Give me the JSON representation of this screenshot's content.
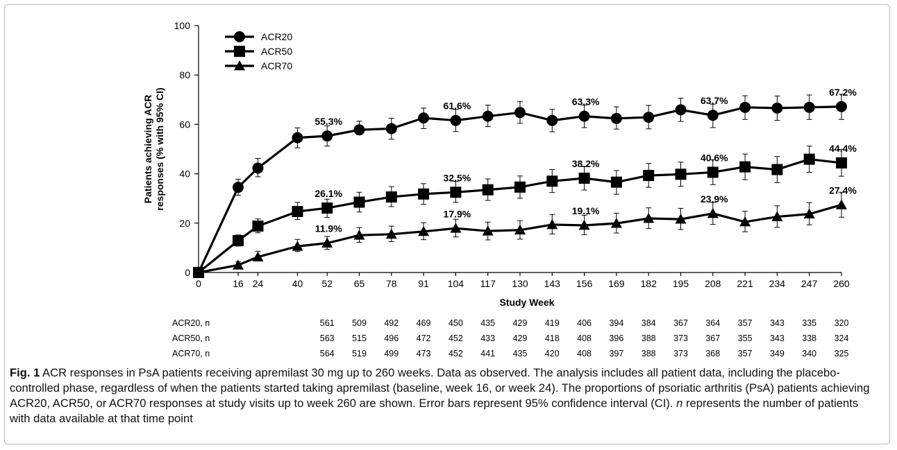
{
  "figure": {
    "fig_label": "Fig. 1",
    "caption_part1": " ACR responses in PsA patients receiving apremilast 30 mg up to 260 weeks. Data as observed. The analysis includes all patient data, including the placebo-controlled phase, regardless of when the patients started taking apremilast (baseline, week 16, or week 24). The proportions of psoriatic arthritis (PsA) patients achieving ACR20, ACR50, or ACR70 responses at study visits up to week 260 are shown. Error bars represent 95% confidence interval (CI). ",
    "caption_n": "n",
    "caption_part2": " represents the number of patients with data available at that time point"
  },
  "chart_data": {
    "type": "line",
    "title": "",
    "xlabel": "Study Week",
    "ylabel_line1": "Patients achieving ACR",
    "ylabel_line2": "responses (% with 95% CI)",
    "ylim": [
      0,
      100
    ],
    "yticks": [
      0,
      20,
      40,
      60,
      80,
      100
    ],
    "x": [
      0,
      16,
      24,
      40,
      52,
      65,
      78,
      91,
      104,
      117,
      130,
      143,
      156,
      169,
      182,
      195,
      208,
      221,
      234,
      247,
      260
    ],
    "grid": false,
    "legend_position": "top-left",
    "series": [
      {
        "name": "ACR20",
        "marker": "circle",
        "values": [
          0,
          34.5,
          42.3,
          54.6,
          55.3,
          57.8,
          58.3,
          62.6,
          61.6,
          63.3,
          64.8,
          61.6,
          63.3,
          62.4,
          62.9,
          65.9,
          63.7,
          66.9,
          66.6,
          66.9,
          67.2
        ],
        "lower": [
          0,
          31.3,
          38.8,
          50.5,
          51.2,
          55.8,
          54.0,
          58.3,
          57.1,
          59.1,
          60.5,
          57.0,
          58.7,
          58.1,
          58.2,
          61.2,
          58.7,
          62.0,
          61.6,
          62.0,
          62.0
        ],
        "upper": [
          0,
          37.8,
          46.2,
          58.6,
          59.4,
          61.3,
          62.5,
          66.6,
          66.1,
          67.8,
          69.2,
          66.1,
          67.8,
          67.1,
          67.7,
          70.6,
          68.2,
          71.6,
          71.5,
          71.9,
          72.2
        ]
      },
      {
        "name": "ACR50",
        "marker": "square",
        "values": [
          0,
          12.9,
          18.8,
          24.7,
          26.1,
          28.5,
          30.6,
          31.8,
          32.5,
          33.5,
          34.6,
          37.0,
          38.2,
          36.6,
          39.3,
          39.8,
          40.6,
          42.8,
          41.7,
          45.9,
          44.4
        ],
        "lower": [
          0,
          10.7,
          16.1,
          21.5,
          22.3,
          24.5,
          26.7,
          27.6,
          28.4,
          29.2,
          30.1,
          32.4,
          33.4,
          31.7,
          34.5,
          34.9,
          35.6,
          37.6,
          36.4,
          40.6,
          39.0
        ],
        "upper": [
          0,
          15.2,
          21.7,
          28.4,
          29.7,
          32.5,
          34.8,
          36.0,
          36.9,
          37.9,
          39.1,
          41.7,
          42.9,
          41.3,
          44.2,
          44.7,
          45.7,
          48.0,
          47.0,
          51.2,
          49.9
        ]
      },
      {
        "name": "ACR70",
        "marker": "triangle",
        "values": [
          0,
          3.0,
          6.3,
          10.6,
          11.9,
          15.1,
          15.5,
          16.6,
          17.9,
          16.8,
          17.2,
          19.4,
          19.1,
          19.9,
          21.9,
          21.6,
          23.9,
          20.5,
          22.6,
          23.7,
          27.4
        ],
        "lower": [
          0,
          1.8,
          4.7,
          8.5,
          9.4,
          12.2,
          12.5,
          13.3,
          14.4,
          13.2,
          13.5,
          15.6,
          15.3,
          16.0,
          17.8,
          17.4,
          19.5,
          16.5,
          18.3,
          19.3,
          22.4
        ],
        "upper": [
          0,
          4.3,
          8.6,
          13.4,
          14.6,
          18.2,
          18.8,
          20.2,
          21.6,
          20.4,
          21.0,
          23.5,
          23.2,
          24.0,
          26.2,
          26.0,
          28.3,
          24.8,
          27.0,
          28.3,
          32.5
        ]
      }
    ],
    "annotations": [
      {
        "x": 52,
        "y": 55.3,
        "text": "55.3%"
      },
      {
        "x": 104,
        "y": 61.6,
        "text": "61.6%"
      },
      {
        "x": 156,
        "y": 63.3,
        "text": "63.3%"
      },
      {
        "x": 208,
        "y": 63.7,
        "text": "63.7%"
      },
      {
        "x": 260,
        "y": 67.2,
        "text": "67.2%"
      },
      {
        "x": 52,
        "y": 26.1,
        "text": "26.1%"
      },
      {
        "x": 104,
        "y": 32.5,
        "text": "32.5%"
      },
      {
        "x": 156,
        "y": 38.2,
        "text": "38.2%"
      },
      {
        "x": 208,
        "y": 40.6,
        "text": "40.6%"
      },
      {
        "x": 260,
        "y": 44.4,
        "text": "44.4%"
      },
      {
        "x": 52,
        "y": 11.9,
        "text": "11.9%"
      },
      {
        "x": 104,
        "y": 17.9,
        "text": "17.9%"
      },
      {
        "x": 156,
        "y": 19.1,
        "text": "19.1%"
      },
      {
        "x": 208,
        "y": 23.9,
        "text": "23.9%"
      },
      {
        "x": 260,
        "y": 27.4,
        "text": "27.4%"
      }
    ],
    "n_table": {
      "weeks": [
        52,
        65,
        78,
        91,
        104,
        117,
        130,
        143,
        156,
        169,
        182,
        195,
        208,
        221,
        234,
        247,
        260
      ],
      "rows": [
        {
          "label": "ACR20, n",
          "values": [
            "561",
            "509",
            "492",
            "469",
            "450",
            "435",
            "429",
            "419",
            "406",
            "394",
            "384",
            "367",
            "364",
            "357",
            "343",
            "335",
            "320"
          ]
        },
        {
          "label": "ACR50, n",
          "values": [
            "563",
            "515",
            "496",
            "472",
            "452",
            "433",
            "429",
            "418",
            "408",
            "396",
            "388",
            "373",
            "367",
            "355",
            "343",
            "338",
            "324"
          ]
        },
        {
          "label": "ACR70, n",
          "values": [
            "564",
            "519",
            "499",
            "473",
            "452",
            "441",
            "435",
            "420",
            "408",
            "397",
            "388",
            "373",
            "368",
            "357",
            "349",
            "340",
            "325"
          ]
        }
      ]
    }
  }
}
